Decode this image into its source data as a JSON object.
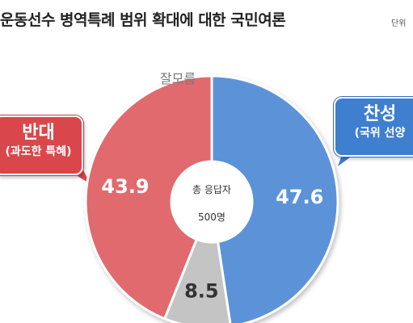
{
  "chart_data": {
    "type": "pie",
    "title": "운동선수 병역특례 범위 확대에 대한 국민여론",
    "unit_label": "단위",
    "center_label": "총 응답자",
    "center_sub": "500명",
    "slices": [
      {
        "name": "찬성",
        "sub": "(국위 선양",
        "value": 47.6,
        "color": "#5b93d8"
      },
      {
        "name": "잘모름",
        "sub": "",
        "value": 8.5,
        "color": "#c4c4c4"
      },
      {
        "name": "반대",
        "sub": "(과도한 특혜)",
        "value": 43.9,
        "color": "#e06a6e"
      }
    ]
  },
  "colors": {
    "agree_callout": "#3e7fd0",
    "disagree_callout": "#d9474c"
  }
}
